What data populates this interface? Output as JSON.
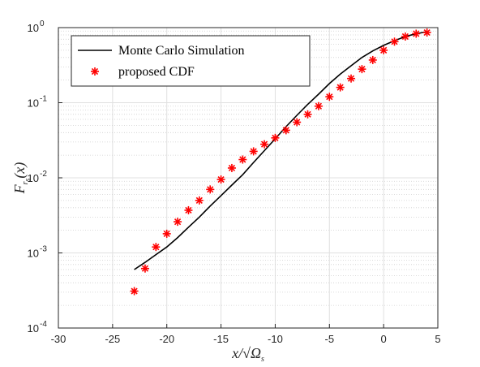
{
  "chart_data": {
    "type": "scatter",
    "xlabel": "x/√Ωs",
    "ylabel": "Fr_s(x)",
    "xlim": [
      -30,
      5
    ],
    "ylim": [
      0.0001,
      1
    ],
    "yscale": "log",
    "grid": true,
    "minor_grid": true,
    "legend_position": "top-left",
    "x_ticks": [
      {
        "value": -30,
        "label": "-30"
      },
      {
        "value": -25,
        "label": "-25"
      },
      {
        "value": -20,
        "label": "-20"
      },
      {
        "value": -15,
        "label": "-15"
      },
      {
        "value": -10,
        "label": "-10"
      },
      {
        "value": -5,
        "label": "-5"
      },
      {
        "value": 0,
        "label": "0"
      },
      {
        "value": 5,
        "label": "5"
      }
    ],
    "y_ticks": [
      {
        "value": 0.0001,
        "base": "10",
        "exp": "-4"
      },
      {
        "value": 0.001,
        "base": "10",
        "exp": "-3"
      },
      {
        "value": 0.01,
        "base": "10",
        "exp": "-2"
      },
      {
        "value": 0.1,
        "base": "10",
        "exp": "-1"
      },
      {
        "value": 1,
        "base": "10",
        "exp": "0"
      }
    ],
    "series": [
      {
        "name": "Monte Carlo Simulation",
        "style": "line",
        "color": "#000000",
        "x": [
          -23,
          -22,
          -21,
          -20,
          -19,
          -18,
          -17,
          -16,
          -15,
          -14,
          -13,
          -12,
          -11,
          -10,
          -9,
          -8,
          -7,
          -6,
          -5,
          -4,
          -3,
          -2,
          -1,
          0,
          1,
          2,
          3,
          4
        ],
        "y": [
          0.0006,
          0.00075,
          0.00095,
          0.0012,
          0.0016,
          0.0022,
          0.003,
          0.0042,
          0.0058,
          0.008,
          0.011,
          0.016,
          0.023,
          0.033,
          0.048,
          0.068,
          0.095,
          0.13,
          0.18,
          0.24,
          0.31,
          0.4,
          0.49,
          0.58,
          0.67,
          0.76,
          0.83,
          0.88
        ]
      },
      {
        "name": "proposed CDF",
        "style": "marker",
        "marker": "asterisk",
        "color": "#ff0000",
        "x": [
          -23,
          -22,
          -21,
          -20,
          -19,
          -18,
          -17,
          -16,
          -15,
          -14,
          -13,
          -12,
          -11,
          -10,
          -9,
          -8,
          -7,
          -6,
          -5,
          -4,
          -3,
          -2,
          -1,
          0,
          1,
          2,
          3,
          4
        ],
        "y": [
          0.00031,
          0.00062,
          0.0012,
          0.0018,
          0.0026,
          0.0037,
          0.005,
          0.007,
          0.0095,
          0.0135,
          0.0175,
          0.0225,
          0.028,
          0.034,
          0.043,
          0.055,
          0.07,
          0.09,
          0.12,
          0.16,
          0.21,
          0.28,
          0.37,
          0.5,
          0.65,
          0.76,
          0.83,
          0.86
        ]
      }
    ]
  }
}
